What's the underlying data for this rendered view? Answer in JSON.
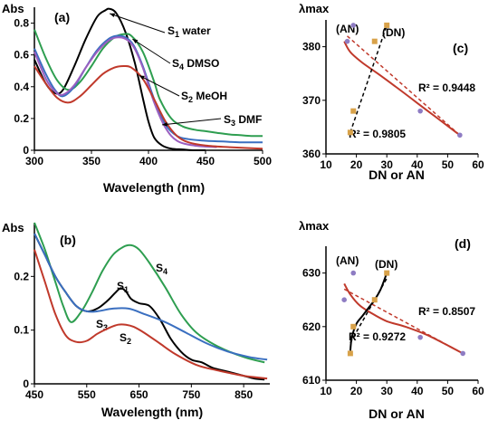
{
  "figure": {
    "background": "#ffffff"
  },
  "chart_data": [
    {
      "panel": "a",
      "panel_label": "(a)",
      "type": "line",
      "ylabel": "Abs",
      "xlabel": "Wavelength (nm)",
      "xlim": [
        300,
        500
      ],
      "ylim": [
        0,
        0.9
      ],
      "xticks": [
        300,
        350,
        400,
        450,
        500
      ],
      "yticks": [
        0,
        0.2,
        0.4,
        0.6,
        0.8
      ],
      "xtick_labels": [
        "300",
        "350",
        "400",
        "450",
        "500"
      ],
      "ytick_labels": [
        "0",
        "0.2",
        "0.4",
        "0.6",
        "0.8"
      ],
      "series": [
        {
          "name": "S1 water",
          "label_main": "S",
          "label_sub": "1",
          "label_rest": " water",
          "color": "#000000",
          "x": [
            300,
            310,
            318,
            325,
            335,
            345,
            355,
            362,
            366,
            372,
            380,
            388,
            395,
            400,
            405,
            412,
            420,
            430,
            440,
            450
          ],
          "y": [
            0.57,
            0.42,
            0.36,
            0.38,
            0.53,
            0.7,
            0.84,
            0.88,
            0.89,
            0.86,
            0.74,
            0.55,
            0.33,
            0.18,
            0.08,
            0.03,
            0.01,
            0.005,
            0,
            0
          ]
        },
        {
          "name": "S4 DMSO",
          "label_main": "S",
          "label_sub": "4",
          "label_rest": " DMSO",
          "color": "#2e9e50",
          "x": [
            300,
            310,
            320,
            330,
            340,
            350,
            360,
            370,
            378,
            385,
            395,
            405,
            410,
            420,
            430,
            440,
            450,
            460,
            470,
            480,
            490,
            500
          ],
          "y": [
            0.76,
            0.58,
            0.44,
            0.38,
            0.43,
            0.53,
            0.64,
            0.71,
            0.73,
            0.72,
            0.62,
            0.43,
            0.32,
            0.2,
            0.15,
            0.13,
            0.12,
            0.11,
            0.1,
            0.095,
            0.09,
            0.09
          ]
        },
        {
          "name": "",
          "label_main": "",
          "label_sub": "",
          "label_rest": "",
          "color": "#3a6fc0",
          "x": [
            300,
            310,
            318,
            325,
            335,
            345,
            355,
            365,
            372,
            380,
            387,
            395,
            405,
            415,
            425,
            435,
            450,
            465,
            480,
            500
          ],
          "y": [
            0.64,
            0.48,
            0.38,
            0.34,
            0.4,
            0.52,
            0.63,
            0.7,
            0.72,
            0.71,
            0.66,
            0.53,
            0.32,
            0.16,
            0.09,
            0.07,
            0.06,
            0.055,
            0.05,
            0.05
          ]
        },
        {
          "name": "",
          "label_main": "",
          "label_sub": "",
          "label_rest": "",
          "color": "#9b5fc0",
          "x": [
            300,
            310,
            318,
            325,
            335,
            345,
            355,
            365,
            372,
            380,
            387,
            395,
            405,
            415,
            425,
            440,
            460
          ],
          "y": [
            0.62,
            0.45,
            0.37,
            0.35,
            0.41,
            0.52,
            0.62,
            0.69,
            0.71,
            0.7,
            0.65,
            0.52,
            0.3,
            0.14,
            0.06,
            0.03,
            0.02
          ]
        },
        {
          "name": "S2 MeOH",
          "label_main": "S",
          "label_sub": "2",
          "label_rest": " MeOH",
          "color": "#c0392b",
          "x": [
            300,
            310,
            320,
            330,
            340,
            350,
            360,
            370,
            378,
            385,
            395,
            405,
            415,
            425,
            435,
            450,
            470,
            500
          ],
          "y": [
            0.53,
            0.42,
            0.33,
            0.3,
            0.34,
            0.41,
            0.48,
            0.52,
            0.53,
            0.52,
            0.45,
            0.32,
            0.18,
            0.09,
            0.05,
            0.03,
            0.02,
            0.01
          ]
        }
      ],
      "annotations": [
        {
          "text_main": "S",
          "text_sub": "3",
          "text_rest": " DMF",
          "color": "#000000"
        }
      ]
    },
    {
      "panel": "c",
      "panel_label": "(c)",
      "type": "scatter",
      "ylabel": "λmax",
      "xlabel": "DN or AN",
      "xlim": [
        10,
        60
      ],
      "ylim": [
        360,
        385
      ],
      "xticks": [
        10,
        20,
        30,
        40,
        50,
        60
      ],
      "yticks": [
        360,
        370,
        380
      ],
      "xtick_labels": [
        "10",
        "20",
        "30",
        "40",
        "50",
        "60"
      ],
      "ytick_labels": [
        "360",
        "370",
        "380"
      ],
      "group_labels": [
        "(AN)",
        "(DN)"
      ],
      "series": [
        {
          "name": "AN",
          "color": "#8e7cc3",
          "x": [
            17,
            19,
            41,
            54
          ],
          "y": [
            381,
            384,
            368,
            363.5
          ]
        },
        {
          "name": "DN",
          "color": "#d8a24a",
          "x": [
            18,
            19,
            26,
            30
          ],
          "y": [
            364,
            368,
            381,
            384
          ]
        }
      ],
      "fits": [
        {
          "color": "#c0392b",
          "style": "dashed",
          "x": [
            17,
            54
          ],
          "y": [
            382,
            363.5
          ]
        },
        {
          "color": "#000000",
          "style": "dashed",
          "x": [
            18,
            30
          ],
          "y": [
            364,
            384
          ]
        }
      ],
      "curve": {
        "color": "#c0392b",
        "x": [
          16,
          18,
          22,
          27,
          33,
          40,
          47,
          54
        ],
        "y": [
          381,
          379,
          377,
          375,
          372.5,
          369.5,
          366.5,
          363.5
        ]
      },
      "annotations": [
        {
          "text": "R² = 0.9448"
        },
        {
          "text": "R² = 0.9805"
        }
      ]
    },
    {
      "panel": "b",
      "panel_label": "(b)",
      "type": "line",
      "ylabel": "Abs",
      "xlabel": "Wavelength (nm)",
      "xlim": [
        450,
        900
      ],
      "ylim": [
        0,
        0.3
      ],
      "xticks": [
        450,
        550,
        650,
        750,
        850
      ],
      "yticks": [
        0,
        0.1,
        0.2
      ],
      "xtick_labels": [
        "450",
        "550",
        "650",
        "750",
        "850"
      ],
      "ytick_labels": [
        "0",
        "0.1",
        "0.2"
      ],
      "series": [
        {
          "name": "S4",
          "label_main": "S",
          "label_sub": "4",
          "color": "#2e9e50",
          "x": [
            450,
            470,
            490,
            505,
            520,
            540,
            560,
            580,
            600,
            620,
            635,
            650,
            670,
            700,
            730,
            760,
            800,
            850,
            890
          ],
          "y": [
            0.3,
            0.25,
            0.19,
            0.145,
            0.115,
            0.135,
            0.17,
            0.21,
            0.24,
            0.255,
            0.258,
            0.25,
            0.225,
            0.18,
            0.13,
            0.095,
            0.07,
            0.05,
            0.04
          ]
        },
        {
          "name": "S1",
          "label_main": "S",
          "label_sub": "1",
          "color": "#000000",
          "x": [
            450,
            470,
            490,
            510,
            530,
            550,
            570,
            590,
            605,
            615,
            625,
            635,
            650,
            670,
            690,
            710,
            730,
            750,
            770,
            790,
            810,
            830,
            850,
            870,
            890
          ],
          "y": [
            0.28,
            0.24,
            0.2,
            0.17,
            0.145,
            0.135,
            0.14,
            0.155,
            0.17,
            0.178,
            0.172,
            0.158,
            0.15,
            0.145,
            0.12,
            0.085,
            0.06,
            0.045,
            0.04,
            0.03,
            0.025,
            0.02,
            0.015,
            0.01,
            0.008
          ]
        },
        {
          "name": "S3",
          "label_main": "S",
          "label_sub": "3",
          "color": "#3a6fc0",
          "x": [
            450,
            470,
            490,
            510,
            530,
            550,
            570,
            600,
            630,
            660,
            700,
            740,
            780,
            820,
            860,
            895
          ],
          "y": [
            0.28,
            0.24,
            0.2,
            0.17,
            0.145,
            0.135,
            0.135,
            0.14,
            0.14,
            0.13,
            0.115,
            0.095,
            0.075,
            0.06,
            0.05,
            0.045
          ]
        },
        {
          "name": "S2",
          "label_main": "S",
          "label_sub": "2",
          "color": "#c0392b",
          "x": [
            450,
            470,
            490,
            510,
            530,
            550,
            570,
            590,
            610,
            625,
            640,
            660,
            690,
            720,
            760,
            800,
            850,
            895
          ],
          "y": [
            0.25,
            0.19,
            0.13,
            0.09,
            0.078,
            0.08,
            0.093,
            0.103,
            0.11,
            0.11,
            0.106,
            0.095,
            0.075,
            0.055,
            0.035,
            0.025,
            0.015,
            0.01
          ]
        }
      ]
    },
    {
      "panel": "d",
      "panel_label": "(d)",
      "type": "scatter",
      "ylabel": "λmax",
      "xlabel": "DN or AN",
      "xlim": [
        10,
        60
      ],
      "ylim": [
        610,
        635
      ],
      "xticks": [
        10,
        20,
        30,
        40,
        50,
        60
      ],
      "yticks": [
        610,
        620,
        630
      ],
      "xtick_labels": [
        "10",
        "20",
        "30",
        "40",
        "50",
        "60"
      ],
      "ytick_labels": [
        "610",
        "620",
        "630"
      ],
      "group_labels": [
        "(AN)",
        "(DN)"
      ],
      "series": [
        {
          "name": "AN",
          "color": "#8e7cc3",
          "x": [
            16,
            19,
            41,
            55
          ],
          "y": [
            625,
            630,
            618,
            615
          ]
        },
        {
          "name": "DN",
          "color": "#d8a24a",
          "x": [
            18,
            19,
            26,
            30
          ],
          "y": [
            615,
            620,
            625,
            630
          ]
        }
      ],
      "fits": [
        {
          "color": "#c0392b",
          "style": "dashed",
          "x": [
            16,
            55
          ],
          "y": [
            627,
            615
          ]
        },
        {
          "color": "#000000",
          "style": "dashed",
          "x": [
            18,
            30
          ],
          "y": [
            617,
            629
          ]
        }
      ],
      "curve": {
        "color": "#c0392b",
        "x": [
          16,
          18,
          21,
          25,
          30,
          36,
          43,
          50,
          55
        ],
        "y": [
          628,
          626,
          624,
          622.5,
          621,
          620,
          618.5,
          616.5,
          615
        ]
      },
      "dn_curve": {
        "color": "#000000",
        "x": [
          18,
          18.5,
          20,
          22,
          24,
          26,
          28,
          30
        ],
        "y": [
          615.5,
          618,
          620.5,
          622,
          623.5,
          625,
          627,
          630
        ]
      },
      "annotations": [
        {
          "text": "R² = 0.8507"
        },
        {
          "text": "R² = 0.9272"
        }
      ]
    }
  ]
}
